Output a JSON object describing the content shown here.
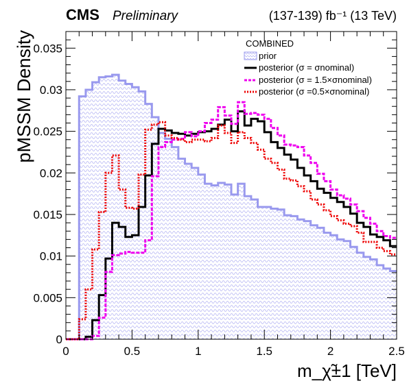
{
  "header": {
    "experiment": "CMS",
    "status": "Preliminary",
    "lumi": "(137-139) fb⁻¹ (13 TeV)"
  },
  "chart_data": {
    "type": "histogram",
    "title": "",
    "xlabel": "m_χ̃±1 [TeV]",
    "ylabel": "pMSSM Density",
    "xlim": [
      0,
      2.5
    ],
    "ylim": [
      0,
      0.037
    ],
    "x_ticks": [
      "0",
      "0.5",
      "1",
      "1.5",
      "2",
      "2.5"
    ],
    "y_ticks": [
      "0",
      "0.005",
      "0.01",
      "0.015",
      "0.02",
      "0.025",
      "0.03",
      "0.035"
    ],
    "bin_width": 0.05,
    "bin_edges_start": 0,
    "legend": {
      "header": "COMBINED",
      "position": "top-right",
      "entries": [
        "prior",
        "posterior (σ = σnominal)",
        "posterior (σ = 1.5×σnominal)",
        "posterior (σ =0.5×σnominal)"
      ]
    },
    "series": [
      {
        "name": "prior",
        "style": "filled-hatched",
        "color": "#9999ee",
        "values": [
          0,
          0,
          0.0292,
          0.03,
          0.0309,
          0.0315,
          0.0316,
          0.0318,
          0.0311,
          0.0307,
          0.0303,
          0.0298,
          0.0283,
          0.0267,
          0.0248,
          0.0241,
          0.0231,
          0.0217,
          0.0211,
          0.0206,
          0.0198,
          0.0187,
          0.0185,
          0.0188,
          0.0186,
          0.0174,
          0.0187,
          0.0172,
          0.0168,
          0.0159,
          0.0159,
          0.0157,
          0.0156,
          0.0149,
          0.0148,
          0.0144,
          0.0142,
          0.0137,
          0.0134,
          0.0128,
          0.0125,
          0.012,
          0.0118,
          0.0111,
          0.0104,
          0.0099,
          0.0096,
          0.0089,
          0.0085,
          0.0082
        ]
      },
      {
        "name": "posterior (σ = σnominal)",
        "style": "solid",
        "color": "#000000",
        "values": [
          0,
          0,
          0,
          0.0003,
          0.0023,
          0.0053,
          0.0097,
          0.014,
          0.0135,
          0.0123,
          0.0125,
          0.0159,
          0.0197,
          0.0235,
          0.0253,
          0.0251,
          0.0248,
          0.0247,
          0.0245,
          0.0247,
          0.0249,
          0.025,
          0.0253,
          0.0258,
          0.0264,
          0.025,
          0.0274,
          0.0257,
          0.0265,
          0.0262,
          0.0249,
          0.0237,
          0.023,
          0.0222,
          0.0216,
          0.0206,
          0.0197,
          0.019,
          0.0181,
          0.0176,
          0.017,
          0.0165,
          0.0159,
          0.0151,
          0.014,
          0.0135,
          0.0126,
          0.0123,
          0.0119,
          0.0112
        ]
      },
      {
        "name": "posterior (σ = 1.5×σnominal)",
        "style": "dashed",
        "color": "#ee00ee",
        "values": [
          0,
          0,
          0,
          0,
          0.0004,
          0.0026,
          0.0081,
          0.0101,
          0.0103,
          0.0105,
          0.0104,
          0.0104,
          0.0119,
          0.0196,
          0.0231,
          0.0237,
          0.024,
          0.0241,
          0.0249,
          0.0244,
          0.025,
          0.026,
          0.0264,
          0.0279,
          0.0269,
          0.0259,
          0.0285,
          0.0271,
          0.0272,
          0.027,
          0.0265,
          0.0254,
          0.0245,
          0.0234,
          0.0233,
          0.0231,
          0.0221,
          0.0212,
          0.0199,
          0.019,
          0.018,
          0.0173,
          0.0169,
          0.0162,
          0.0154,
          0.0146,
          0.0139,
          0.013,
          0.0124,
          0.0122
        ]
      },
      {
        "name": "posterior (σ =0.5×σnominal)",
        "style": "dotted",
        "color": "#ee0000",
        "values": [
          0,
          0,
          0.0024,
          0.006,
          0.0108,
          0.0153,
          0.02,
          0.0221,
          0.018,
          0.0158,
          0.0157,
          0.0198,
          0.0252,
          0.0258,
          0.0261,
          0.0245,
          0.0242,
          0.024,
          0.0237,
          0.024,
          0.024,
          0.0238,
          0.0242,
          0.0257,
          0.0248,
          0.0236,
          0.0249,
          0.0242,
          0.0236,
          0.0228,
          0.0217,
          0.0212,
          0.0204,
          0.0193,
          0.0191,
          0.0184,
          0.0178,
          0.0168,
          0.0162,
          0.0155,
          0.0148,
          0.0143,
          0.0139,
          0.0136,
          0.0128,
          0.0117,
          0.0117,
          0.011,
          0.0106,
          0.0102
        ]
      }
    ]
  }
}
